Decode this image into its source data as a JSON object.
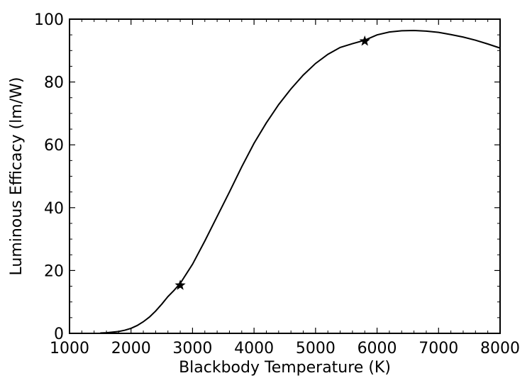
{
  "chart_data": {
    "type": "line",
    "title": "",
    "xlabel": "Blackbody Temperature (K)",
    "ylabel": "Luminous Efficacy (lm/W)",
    "xlim": [
      1000,
      8000
    ],
    "ylim": [
      0,
      100
    ],
    "xticks": [
      1000,
      2000,
      3000,
      4000,
      5000,
      6000,
      7000,
      8000
    ],
    "yticks": [
      0,
      20,
      40,
      60,
      80,
      100
    ],
    "xtick_labels": [
      "1000",
      "2000",
      "3000",
      "4000",
      "5000",
      "6000",
      "7000",
      "8000"
    ],
    "ytick_labels": [
      "0",
      "20",
      "40",
      "60",
      "80",
      "100"
    ],
    "grid": false,
    "legend": "none",
    "line_color": "#000000",
    "series": [
      {
        "x": [
          1500,
          1600,
          1700,
          1800,
          1900,
          2000,
          2100,
          2200,
          2300,
          2400,
          2500,
          2600,
          2700,
          2800,
          3000,
          3200,
          3400,
          3600,
          3800,
          4000,
          4200,
          4400,
          4600,
          4800,
          5000,
          5200,
          5400,
          5600,
          5800,
          6000,
          6200,
          6400,
          6600,
          6800,
          7000,
          7200,
          7400,
          7600,
          7800,
          8000
        ],
        "y": [
          0.1,
          0.2,
          0.4,
          0.6,
          1.0,
          1.6,
          2.5,
          3.7,
          5.2,
          7.1,
          9.3,
          11.7,
          13.7,
          15.9,
          22.0,
          29.4,
          37.2,
          45.0,
          53.0,
          60.5,
          67.0,
          72.8,
          77.8,
          82.2,
          85.9,
          88.8,
          91.0,
          92.2,
          93.3,
          95.0,
          95.9,
          96.3,
          96.4,
          96.2,
          95.8,
          95.1,
          94.3,
          93.3,
          92.1,
          90.8
        ]
      }
    ],
    "markers": [
      {
        "x": 2800,
        "y": 15.3,
        "symbol": "star"
      },
      {
        "x": 5800,
        "y": 93.0,
        "symbol": "star"
      }
    ]
  }
}
